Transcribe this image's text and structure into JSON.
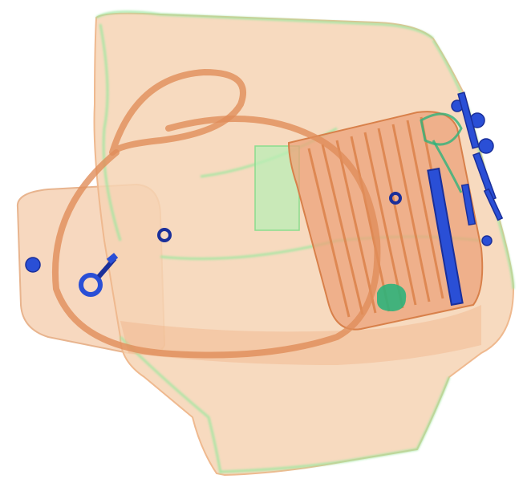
{
  "image": {
    "kind": "x-ray baggage scan",
    "background": "#ffffff",
    "palette": {
      "organic": "#f0b48a",
      "organic_dark": "#d8804a",
      "inorganic": "#9fe7a0",
      "metal": "#2a4fd6",
      "metal_dark": "#1a2f9a"
    },
    "objects": [
      {
        "name": "tote-bag",
        "material": "organic"
      },
      {
        "name": "bag-handle",
        "material": "organic"
      },
      {
        "name": "packaged-item-stack",
        "material": "organic"
      },
      {
        "name": "metal-rod",
        "material": "metal"
      },
      {
        "name": "key-ring",
        "material": "metal"
      },
      {
        "name": "keys-cluster",
        "material": "metal"
      },
      {
        "name": "rivets",
        "material": "metal"
      },
      {
        "name": "green-blob",
        "material": "inorganic"
      }
    ]
  }
}
